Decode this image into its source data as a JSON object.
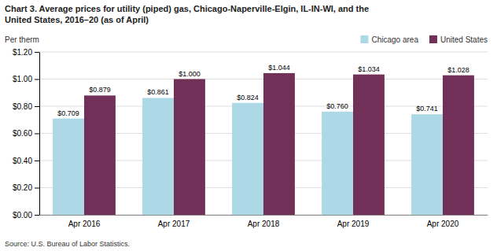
{
  "chart_data": {
    "type": "bar",
    "title": "Chart 3. Average prices for utility (piped) gas, Chicago-Naperville-Elgin, IL-IN-WI, and the\nUnited States, 2016–20 (as of April)",
    "y_label": "Per therm",
    "categories": [
      "Apr 2016",
      "Apr 2017",
      "Apr 2018",
      "Apr 2019",
      "Apr 2020"
    ],
    "series": [
      {
        "name": "Chicago area",
        "color": "#ADD8E6",
        "values": [
          0.709,
          0.861,
          0.824,
          0.76,
          0.741
        ],
        "value_labels": [
          "$0.709",
          "$0.861",
          "$0.824",
          "$0.760",
          "$0.741"
        ]
      },
      {
        "name": "United States",
        "color": "#722F57",
        "values": [
          0.879,
          1.0,
          1.044,
          1.034,
          1.028
        ],
        "value_labels": [
          "$0.879",
          "$1.000",
          "$1.044",
          "$1.034",
          "$1.028"
        ]
      }
    ],
    "ylim": [
      0,
      1.2
    ],
    "yticks": [
      {
        "value": 0,
        "label": "$0.00"
      },
      {
        "value": 0.2,
        "label": "$0.20"
      },
      {
        "value": 0.4,
        "label": "$0.40"
      },
      {
        "value": 0.6,
        "label": "$0.60"
      },
      {
        "value": 0.8,
        "label": "$0.80"
      },
      {
        "value": 1.0,
        "label": "$1.00"
      },
      {
        "value": 1.2,
        "label": "$1.20"
      }
    ],
    "grid": true,
    "data_labels": true,
    "legend": "top-right",
    "annotations": [
      "Source: U.S. Bureau of Labor Statistics."
    ]
  }
}
